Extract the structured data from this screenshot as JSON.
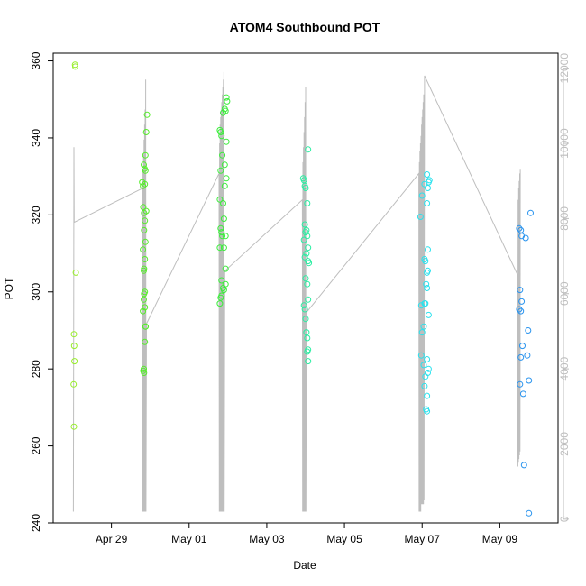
{
  "chart_data": {
    "type": "scatter",
    "title": "ATOM4 Southbound POT",
    "xlabel": "Date",
    "ylabel": "POT",
    "xlim": [
      "2016-04-27T12:00",
      "2016-05-10T12:00"
    ],
    "ylim": [
      240,
      362
    ],
    "y2lim": [
      -100,
      12400
    ],
    "x_ticks": [
      {
        "x": "2016-04-29",
        "label": "Apr 29"
      },
      {
        "x": "2016-05-01",
        "label": "May 01"
      },
      {
        "x": "2016-05-03",
        "label": "May 03"
      },
      {
        "x": "2016-05-05",
        "label": "May 05"
      },
      {
        "x": "2016-05-07",
        "label": "May 07"
      },
      {
        "x": "2016-05-09",
        "label": "May 09"
      }
    ],
    "y_ticks": [
      "240",
      "260",
      "280",
      "300",
      "320",
      "340",
      "360"
    ],
    "y2_ticks": [
      "0",
      "2000",
      "4000",
      "6000",
      "8000",
      "10000",
      "12000"
    ],
    "colors": {
      "axis": "#000000",
      "secondary_axis": "#bebebe",
      "secondary_series": "#bebebe"
    },
    "series": [
      {
        "color": "#98ee2a",
        "points": [
          [
            "2016-04-28T01:30",
            359.0
          ],
          [
            "2016-04-28T01:40",
            358.5
          ],
          [
            "2016-04-28T02:00",
            305.0
          ],
          [
            "2016-04-28T00:50",
            289.0
          ],
          [
            "2016-04-28T01:00",
            286.0
          ],
          [
            "2016-04-28T01:10",
            282.0
          ],
          [
            "2016-04-28T00:40",
            276.0
          ],
          [
            "2016-04-28T00:50",
            265.0
          ]
        ]
      },
      {
        "color": "#55ee2a",
        "points": [
          [
            "2016-04-29T22:00",
            346.0
          ],
          [
            "2016-04-29T21:30",
            341.5
          ],
          [
            "2016-04-29T21:00",
            335.5
          ],
          [
            "2016-04-29T20:00",
            333.0
          ],
          [
            "2016-04-29T20:30",
            332.0
          ],
          [
            "2016-04-29T21:00",
            331.5
          ],
          [
            "2016-04-29T19:00",
            328.5
          ],
          [
            "2016-04-29T19:30",
            327.5
          ],
          [
            "2016-04-29T20:40",
            328.0
          ],
          [
            "2016-04-29T21:30",
            321.0
          ],
          [
            "2016-04-29T19:40",
            322.0
          ],
          [
            "2016-04-29T20:10",
            320.5
          ],
          [
            "2016-04-29T20:40",
            318.5
          ],
          [
            "2016-04-29T20:10",
            316.0
          ],
          [
            "2016-04-29T21:00",
            313.0
          ],
          [
            "2016-04-29T19:30",
            311.0
          ],
          [
            "2016-04-29T20:40",
            308.5
          ],
          [
            "2016-04-29T20:10",
            306.0
          ],
          [
            "2016-04-29T20:00",
            305.5
          ],
          [
            "2016-04-29T20:40",
            300.0
          ],
          [
            "2016-04-29T20:10",
            299.5
          ],
          [
            "2016-04-29T20:00",
            298.0
          ],
          [
            "2016-04-29T20:40",
            296.0
          ],
          [
            "2016-04-29T19:30",
            295.0
          ],
          [
            "2016-04-29T21:00",
            291.0
          ],
          [
            "2016-04-29T21:10",
            291.0
          ],
          [
            "2016-04-29T20:40",
            287.0
          ],
          [
            "2016-04-29T20:00",
            280.0
          ],
          [
            "2016-04-29T20:10",
            279.0
          ],
          [
            "2016-04-29T19:40",
            279.5
          ]
        ]
      },
      {
        "color": "#3aee3a",
        "points": [
          [
            "2016-05-01T23:00",
            350.5
          ],
          [
            "2016-05-01T23:30",
            349.5
          ],
          [
            "2016-05-01T22:00",
            347.5
          ],
          [
            "2016-05-01T22:30",
            347.0
          ],
          [
            "2016-05-01T21:00",
            346.5
          ],
          [
            "2016-05-01T19:00",
            342.0
          ],
          [
            "2016-05-01T19:30",
            341.5
          ],
          [
            "2016-05-01T20:00",
            340.5
          ],
          [
            "2016-05-01T23:00",
            339.0
          ],
          [
            "2016-05-01T20:30",
            335.5
          ],
          [
            "2016-05-01T22:00",
            333.0
          ],
          [
            "2016-05-01T19:30",
            331.5
          ],
          [
            "2016-05-01T23:00",
            329.5
          ],
          [
            "2016-05-01T22:00",
            327.5
          ],
          [
            "2016-05-01T19:00",
            324.0
          ],
          [
            "2016-05-01T21:00",
            323.0
          ],
          [
            "2016-05-01T21:30",
            319.0
          ],
          [
            "2016-05-01T19:30",
            316.5
          ],
          [
            "2016-05-01T20:00",
            315.5
          ],
          [
            "2016-05-01T20:30",
            314.5
          ],
          [
            "2016-05-01T22:30",
            314.5
          ],
          [
            "2016-05-01T19:00",
            311.5
          ],
          [
            "2016-05-01T21:30",
            311.5
          ],
          [
            "2016-05-01T22:30",
            306.0
          ],
          [
            "2016-05-01T20:00",
            303.0
          ],
          [
            "2016-05-01T22:30",
            302.0
          ],
          [
            "2016-05-01T21:00",
            301.0
          ],
          [
            "2016-05-01T21:30",
            300.5
          ],
          [
            "2016-05-01T20:00",
            299.0
          ],
          [
            "2016-05-01T19:30",
            298.5
          ],
          [
            "2016-05-01T19:00",
            297.0
          ]
        ]
      },
      {
        "color": "#2aeea2",
        "points": [
          [
            "2016-05-04T01:30",
            337.0
          ],
          [
            "2016-05-03T23:00",
            329.0
          ],
          [
            "2016-05-03T23:30",
            327.5
          ],
          [
            "2016-05-03T22:30",
            329.5
          ],
          [
            "2016-05-04T00:00",
            327.0
          ],
          [
            "2016-05-04T01:00",
            323.0
          ],
          [
            "2016-05-03T23:30",
            317.5
          ],
          [
            "2016-05-04T00:30",
            316.0
          ],
          [
            "2016-05-03T23:00",
            313.5
          ],
          [
            "2016-05-04T01:00",
            314.5
          ],
          [
            "2016-05-04T00:00",
            315.5
          ],
          [
            "2016-05-04T01:30",
            311.5
          ],
          [
            "2016-05-04T00:30",
            310.0
          ],
          [
            "2016-05-03T23:30",
            309.0
          ],
          [
            "2016-05-04T02:00",
            307.5
          ],
          [
            "2016-05-04T01:30",
            308.0
          ],
          [
            "2016-05-04T00:00",
            303.5
          ],
          [
            "2016-05-04T01:00",
            302.0
          ],
          [
            "2016-05-04T01:30",
            298.0
          ],
          [
            "2016-05-03T23:00",
            296.5
          ],
          [
            "2016-05-03T23:30",
            295.5
          ],
          [
            "2016-05-04T00:00",
            293.0
          ],
          [
            "2016-05-04T00:30",
            289.5
          ],
          [
            "2016-05-04T01:00",
            288.0
          ],
          [
            "2016-05-04T01:30",
            285.0
          ],
          [
            "2016-05-04T01:00",
            284.5
          ],
          [
            "2016-05-04T01:30",
            282.0
          ]
        ]
      },
      {
        "color": "#2ae2ee",
        "points": [
          [
            "2016-05-07T03:00",
            330.5
          ],
          [
            "2016-05-07T04:30",
            329.0
          ],
          [
            "2016-05-07T04:00",
            328.5
          ],
          [
            "2016-05-07T01:30",
            328.0
          ],
          [
            "2016-05-07T03:30",
            327.0
          ],
          [
            "2016-05-07T00:00",
            325.0
          ],
          [
            "2016-05-07T03:00",
            323.0
          ],
          [
            "2016-05-06T23:00",
            319.5
          ],
          [
            "2016-05-07T03:30",
            311.0
          ],
          [
            "2016-05-07T01:30",
            308.5
          ],
          [
            "2016-05-07T02:00",
            308.0
          ],
          [
            "2016-05-07T03:30",
            305.5
          ],
          [
            "2016-05-07T03:00",
            305.0
          ],
          [
            "2016-05-07T02:30",
            302.0
          ],
          [
            "2016-05-07T03:00",
            301.0
          ],
          [
            "2016-05-06T23:30",
            296.5
          ],
          [
            "2016-05-07T01:30",
            297.0
          ],
          [
            "2016-05-07T02:00",
            297.0
          ],
          [
            "2016-05-07T04:00",
            294.0
          ],
          [
            "2016-05-07T01:00",
            291.0
          ],
          [
            "2016-05-07T00:00",
            289.5
          ],
          [
            "2016-05-06T23:30",
            283.5
          ],
          [
            "2016-05-07T03:00",
            282.5
          ],
          [
            "2016-05-07T01:00",
            281.0
          ],
          [
            "2016-05-07T04:00",
            280.0
          ],
          [
            "2016-05-07T03:30",
            279.0
          ],
          [
            "2016-05-07T02:00",
            278.0
          ],
          [
            "2016-05-07T01:30",
            275.5
          ],
          [
            "2016-05-07T03:00",
            273.0
          ],
          [
            "2016-05-07T02:30",
            269.5
          ],
          [
            "2016-05-07T03:00",
            269.0
          ]
        ]
      },
      {
        "color": "#2a94ee",
        "points": [
          [
            "2016-05-09T12:00",
            316.5
          ],
          [
            "2016-05-09T13:00",
            316.0
          ],
          [
            "2016-05-09T13:30",
            314.5
          ],
          [
            "2016-05-09T16:00",
            314.0
          ],
          [
            "2016-05-09T19:00",
            320.5
          ],
          [
            "2016-05-09T12:30",
            300.5
          ],
          [
            "2016-05-09T13:30",
            297.5
          ],
          [
            "2016-05-09T12:00",
            295.5
          ],
          [
            "2016-05-09T13:00",
            295.0
          ],
          [
            "2016-05-09T17:30",
            290.0
          ],
          [
            "2016-05-09T14:00",
            286.0
          ],
          [
            "2016-05-09T17:00",
            283.5
          ],
          [
            "2016-05-09T13:00",
            283.0
          ],
          [
            "2016-05-09T18:00",
            277.0
          ],
          [
            "2016-05-09T12:30",
            276.0
          ],
          [
            "2016-05-09T14:30",
            273.5
          ],
          [
            "2016-05-09T15:00",
            255.0
          ],
          [
            "2016-05-09T18:00",
            242.5
          ]
        ]
      }
    ],
    "secondary_series": {
      "axis": "right",
      "style": "line",
      "color": "#bebebe",
      "points": [
        [
          "2016-04-28T00:30",
          200
        ],
        [
          "2016-04-28T00:40",
          4200
        ],
        [
          "2016-04-28T00:50",
          9900
        ],
        [
          "2016-04-28T01:00",
          7900
        ],
        [
          "2016-04-29T19:00",
          8800
        ],
        [
          "2016-04-29T19:00",
          200
        ],
        [
          "2016-04-29T19:10",
          8600
        ],
        [
          "2016-04-29T19:20",
          200
        ],
        [
          "2016-04-29T19:30",
          9300
        ],
        [
          "2016-04-29T19:40",
          200
        ],
        [
          "2016-04-29T19:50",
          9700
        ],
        [
          "2016-04-29T20:00",
          200
        ],
        [
          "2016-04-29T20:10",
          10100
        ],
        [
          "2016-04-29T20:20",
          200
        ],
        [
          "2016-04-29T20:30",
          10500
        ],
        [
          "2016-04-29T20:40",
          200
        ],
        [
          "2016-04-29T20:50",
          10900
        ],
        [
          "2016-04-29T21:00",
          200
        ],
        [
          "2016-04-29T21:10",
          11700
        ],
        [
          "2016-04-29T21:20",
          200
        ],
        [
          "2016-04-29T21:40",
          5200
        ],
        [
          "2016-05-01T18:30",
          9200
        ],
        [
          "2016-05-01T18:40",
          200
        ],
        [
          "2016-05-01T18:50",
          10000
        ],
        [
          "2016-05-01T19:00",
          200
        ],
        [
          "2016-05-01T19:10",
          10500
        ],
        [
          "2016-05-01T19:20",
          200
        ],
        [
          "2016-05-01T19:30",
          10700
        ],
        [
          "2016-05-01T19:40",
          200
        ],
        [
          "2016-05-01T19:50",
          10900
        ],
        [
          "2016-05-01T20:00",
          200
        ],
        [
          "2016-05-01T20:10",
          11100
        ],
        [
          "2016-05-01T20:20",
          200
        ],
        [
          "2016-05-01T20:30",
          11300
        ],
        [
          "2016-05-01T20:40",
          200
        ],
        [
          "2016-05-01T20:50",
          11500
        ],
        [
          "2016-05-01T21:00",
          200
        ],
        [
          "2016-05-01T21:10",
          11700
        ],
        [
          "2016-05-01T21:20",
          200
        ],
        [
          "2016-05-01T21:30",
          11900
        ],
        [
          "2016-05-01T21:40",
          200
        ],
        [
          "2016-05-01T22:00",
          6600
        ],
        [
          "2016-05-03T22:00",
          8500
        ],
        [
          "2016-05-03T22:10",
          200
        ],
        [
          "2016-05-03T22:20",
          9500
        ],
        [
          "2016-05-03T22:30",
          200
        ],
        [
          "2016-05-03T22:40",
          9900
        ],
        [
          "2016-05-03T22:50",
          200
        ],
        [
          "2016-05-03T23:00",
          10300
        ],
        [
          "2016-05-03T23:10",
          200
        ],
        [
          "2016-05-03T23:20",
          10700
        ],
        [
          "2016-05-03T23:30",
          200
        ],
        [
          "2016-05-03T23:40",
          11100
        ],
        [
          "2016-05-03T23:50",
          200
        ],
        [
          "2016-05-04T00:00",
          11500
        ],
        [
          "2016-05-04T00:10",
          200
        ],
        [
          "2016-05-04T00:30",
          5500
        ],
        [
          "2016-05-06T22:00",
          9200
        ],
        [
          "2016-05-06T22:10",
          200
        ],
        [
          "2016-05-06T22:20",
          9500
        ],
        [
          "2016-05-06T22:30",
          200
        ],
        [
          "2016-05-06T22:40",
          9800
        ],
        [
          "2016-05-06T22:50",
          200
        ],
        [
          "2016-05-06T23:00",
          10000
        ],
        [
          "2016-05-06T23:10",
          200
        ],
        [
          "2016-05-06T23:20",
          10200
        ],
        [
          "2016-05-06T23:30",
          400
        ],
        [
          "2016-05-06T23:40",
          10500
        ],
        [
          "2016-05-06T23:50",
          400
        ],
        [
          "2016-05-07T00:00",
          10700
        ],
        [
          "2016-05-07T00:10",
          400
        ],
        [
          "2016-05-07T00:20",
          10900
        ],
        [
          "2016-05-07T00:30",
          400
        ],
        [
          "2016-05-07T00:40",
          11100
        ],
        [
          "2016-05-07T00:50",
          400
        ],
        [
          "2016-05-07T01:00",
          11300
        ],
        [
          "2016-05-07T01:10",
          500
        ],
        [
          "2016-05-07T01:30",
          11800
        ],
        [
          "2016-05-09T11:00",
          6500
        ],
        [
          "2016-05-09T11:10",
          1400
        ],
        [
          "2016-05-09T11:20",
          8500
        ],
        [
          "2016-05-09T11:30",
          1500
        ],
        [
          "2016-05-09T11:40",
          8800
        ],
        [
          "2016-05-09T11:50",
          1600
        ],
        [
          "2016-05-09T12:00",
          9000
        ],
        [
          "2016-05-09T12:10",
          1700
        ],
        [
          "2016-05-09T12:20",
          9200
        ],
        [
          "2016-05-09T12:30",
          1800
        ],
        [
          "2016-05-09T12:40",
          9300
        ]
      ]
    }
  }
}
